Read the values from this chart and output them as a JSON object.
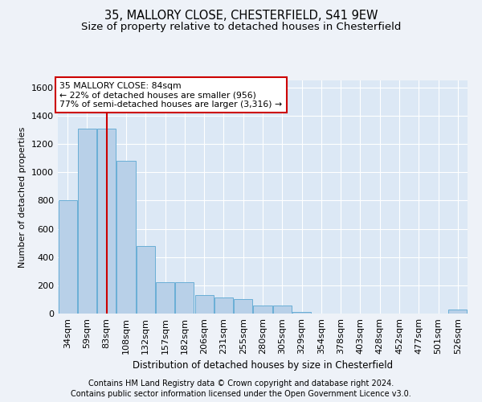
{
  "title1": "35, MALLORY CLOSE, CHESTERFIELD, S41 9EW",
  "title2": "Size of property relative to detached houses in Chesterfield",
  "xlabel": "Distribution of detached houses by size in Chesterfield",
  "ylabel": "Number of detached properties",
  "categories": [
    "34sqm",
    "59sqm",
    "83sqm",
    "108sqm",
    "132sqm",
    "157sqm",
    "182sqm",
    "206sqm",
    "231sqm",
    "255sqm",
    "280sqm",
    "305sqm",
    "329sqm",
    "354sqm",
    "378sqm",
    "403sqm",
    "428sqm",
    "452sqm",
    "477sqm",
    "501sqm",
    "526sqm"
  ],
  "values": [
    800,
    1310,
    1310,
    1080,
    480,
    220,
    220,
    130,
    115,
    105,
    55,
    55,
    10,
    0,
    0,
    0,
    0,
    0,
    0,
    0,
    30
  ],
  "bar_color": "#b8d0e8",
  "bar_edge_color": "#6aaed6",
  "vline_color": "#cc0000",
  "annotation_text": "35 MALLORY CLOSE: 84sqm\n← 22% of detached houses are smaller (956)\n77% of semi-detached houses are larger (3,316) →",
  "annotation_box_facecolor": "#ffffff",
  "annotation_box_edgecolor": "#cc0000",
  "ylim": [
    0,
    1650
  ],
  "yticks": [
    0,
    200,
    400,
    600,
    800,
    1000,
    1200,
    1400,
    1600
  ],
  "footer1": "Contains HM Land Registry data © Crown copyright and database right 2024.",
  "footer2": "Contains public sector information licensed under the Open Government Licence v3.0.",
  "background_color": "#eef2f8",
  "plot_bg_color": "#dce8f5",
  "grid_color": "#ffffff",
  "title_fontsize": 10.5,
  "subtitle_fontsize": 9.5,
  "axis_fontsize": 8,
  "footer_fontsize": 7
}
